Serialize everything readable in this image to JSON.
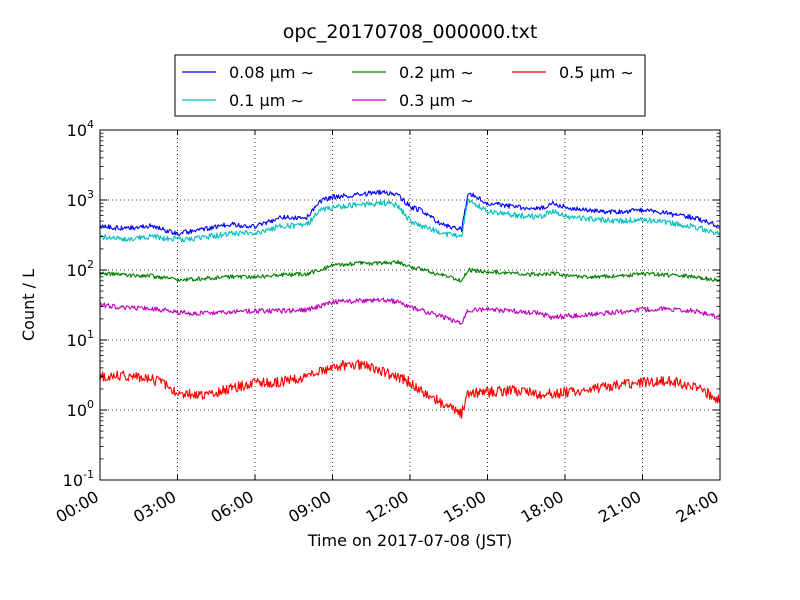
{
  "chart_data": {
    "type": "line",
    "title": "opc_20170708_000000.txt",
    "xlabel": "Time on 2017-07-08 (JST)",
    "ylabel": "Count / L",
    "y_scale": "log",
    "ylim": [
      0.1,
      10000
    ],
    "xlim": [
      "00:00",
      "24:00"
    ],
    "x_ticks": [
      "00:00",
      "03:00",
      "06:00",
      "09:00",
      "12:00",
      "15:00",
      "18:00",
      "21:00",
      "24:00"
    ],
    "y_ticks": [
      {
        "base": "10",
        "exp": "-1"
      },
      {
        "base": "10",
        "exp": "0"
      },
      {
        "base": "10",
        "exp": "1"
      },
      {
        "base": "10",
        "exp": "2"
      },
      {
        "base": "10",
        "exp": "3"
      },
      {
        "base": "10",
        "exp": "4"
      }
    ],
    "grid": true,
    "legend_position": "top-center",
    "x": [
      "00:00",
      "01:00",
      "02:00",
      "03:00",
      "04:00",
      "05:00",
      "06:00",
      "07:00",
      "08:00",
      "08:30",
      "09:00",
      "10:00",
      "11:00",
      "11:30",
      "12:00",
      "12:30",
      "13:00",
      "13:30",
      "14:00",
      "14:15",
      "15:00",
      "16:00",
      "17:00",
      "17:30",
      "18:00",
      "19:00",
      "20:00",
      "21:00",
      "22:00",
      "23:00",
      "24:00"
    ],
    "series": [
      {
        "name": "0.08 µm ∼",
        "color": "#0000ff",
        "values": [
          420,
          390,
          430,
          330,
          380,
          450,
          420,
          560,
          560,
          950,
          1100,
          1200,
          1300,
          1200,
          800,
          700,
          500,
          420,
          380,
          1300,
          900,
          800,
          750,
          900,
          800,
          700,
          680,
          720,
          640,
          560,
          420
        ]
      },
      {
        "name": "0.1 µm ∼",
        "color": "#00bfbf",
        "values": [
          300,
          280,
          300,
          270,
          290,
          330,
          340,
          420,
          440,
          700,
          780,
          850,
          900,
          850,
          500,
          420,
          360,
          320,
          310,
          1000,
          700,
          610,
          570,
          700,
          580,
          530,
          500,
          520,
          470,
          420,
          320
        ]
      },
      {
        "name": "0.2 µm ∼",
        "color": "#008000",
        "values": [
          90,
          85,
          82,
          72,
          75,
          80,
          80,
          85,
          88,
          100,
          115,
          125,
          125,
          130,
          110,
          100,
          90,
          80,
          70,
          100,
          95,
          90,
          85,
          90,
          82,
          80,
          82,
          88,
          85,
          80,
          70
        ]
      },
      {
        "name": "0.3 µm ∼",
        "color": "#bf00bf",
        "values": [
          32,
          29,
          28,
          25,
          24,
          25,
          26,
          26,
          27,
          30,
          35,
          36,
          38,
          35,
          30,
          26,
          23,
          20,
          17,
          27,
          27,
          26,
          24,
          21,
          22,
          23,
          25,
          27,
          28,
          26,
          21
        ]
      },
      {
        "name": "0.5 µm ∼",
        "color": "#ff0000",
        "values": [
          3.0,
          3.1,
          2.8,
          1.8,
          1.6,
          2.0,
          2.4,
          2.5,
          3.0,
          3.5,
          4.2,
          4.5,
          3.5,
          3.0,
          2.5,
          1.8,
          1.4,
          1.1,
          0.9,
          1.7,
          1.8,
          1.9,
          1.7,
          1.7,
          1.8,
          2.0,
          2.3,
          2.5,
          2.6,
          2.2,
          1.4
        ]
      }
    ]
  }
}
